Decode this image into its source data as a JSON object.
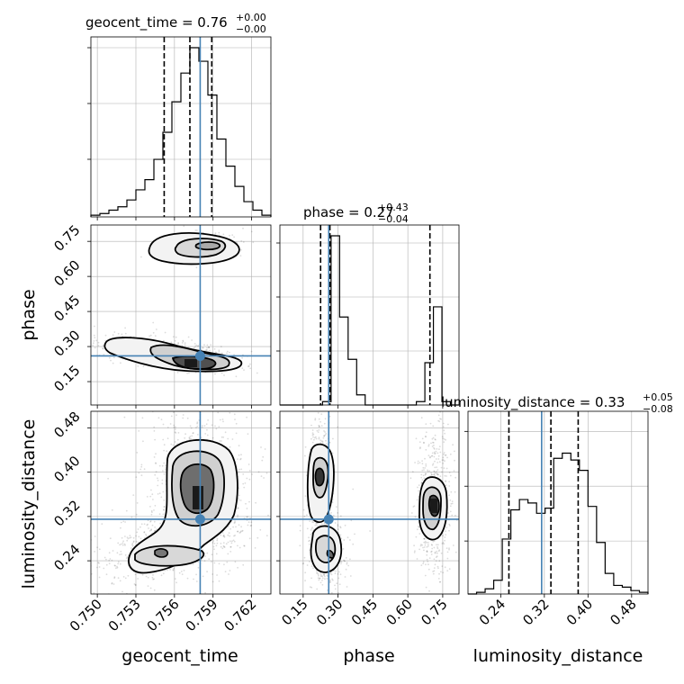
{
  "chart_data": {
    "type": "corner",
    "parameters": [
      "geocent_time",
      "phase",
      "luminosity_distance"
    ],
    "axes": {
      "geocent_time": {
        "label": "geocent_time",
        "range": [
          0.7495,
          0.7635
        ],
        "ticks": [
          "0.750",
          "0.753",
          "0.756",
          "0.759",
          "0.762"
        ],
        "tick_values": [
          0.75,
          0.753,
          0.756,
          0.759,
          0.762
        ]
      },
      "phase": {
        "label": "phase",
        "range": [
          0.05,
          0.82
        ],
        "ticks": [
          "0.15",
          "0.30",
          "0.45",
          "0.60",
          "0.75"
        ],
        "tick_values": [
          0.15,
          0.3,
          0.45,
          0.6,
          0.75
        ]
      },
      "luminosity_distance": {
        "label": "luminosity_distance",
        "range": [
          0.18,
          0.51
        ],
        "ticks": [
          "0.24",
          "0.32",
          "0.40",
          "0.48"
        ],
        "tick_values": [
          0.24,
          0.32,
          0.4,
          0.48
        ]
      }
    },
    "titles": {
      "geocent_time": {
        "prefix": "geocent_time = ",
        "value": "0.76",
        "plus": "+0.00",
        "minus": "−0.00"
      },
      "phase": {
        "prefix": "phase = ",
        "value": "0.27",
        "plus": "+0.43",
        "minus": "−0.04"
      },
      "luminosity_distance": {
        "prefix": "luminosity_distance = ",
        "value": "0.33",
        "plus": "+0.05",
        "minus": "−0.08"
      }
    },
    "truths": {
      "geocent_time": 0.758,
      "phase": 0.26,
      "luminosity_distance": 0.315
    },
    "quantiles": {
      "geocent_time": [
        0.7552,
        0.7572,
        0.7589
      ],
      "phase": [
        0.225,
        0.265,
        0.695
      ],
      "luminosity_distance": [
        0.255,
        0.332,
        0.382
      ]
    },
    "histograms": {
      "geocent_time": {
        "x_range": [
          0.7495,
          0.7635
        ],
        "counts": [
          0.01,
          0.02,
          0.04,
          0.06,
          0.1,
          0.16,
          0.22,
          0.34,
          0.5,
          0.68,
          0.85,
          1.0,
          0.92,
          0.72,
          0.46,
          0.3,
          0.18,
          0.09,
          0.04,
          0.01
        ]
      },
      "phase": {
        "x_range": [
          0.05,
          0.82
        ],
        "counts": [
          0,
          0,
          0,
          0,
          0,
          0.02,
          1.0,
          0.52,
          0.27,
          0.06,
          0,
          0,
          0,
          0,
          0,
          0,
          0.02,
          0.25,
          0.58,
          0.02,
          0
        ]
      },
      "luminosity_distance": {
        "x_range": [
          0.18,
          0.51
        ],
        "counts": [
          0,
          0.01,
          0.03,
          0.08,
          0.32,
          0.49,
          0.55,
          0.53,
          0.47,
          0.5,
          0.79,
          0.82,
          0.78,
          0.72,
          0.51,
          0.3,
          0.12,
          0.05,
          0.04,
          0.02,
          0.01
        ]
      }
    },
    "colors": {
      "truth": "#4682b4",
      "hist": "#000000",
      "contour": "#000000",
      "grid": "#b0b0b0"
    },
    "grid": true
  }
}
